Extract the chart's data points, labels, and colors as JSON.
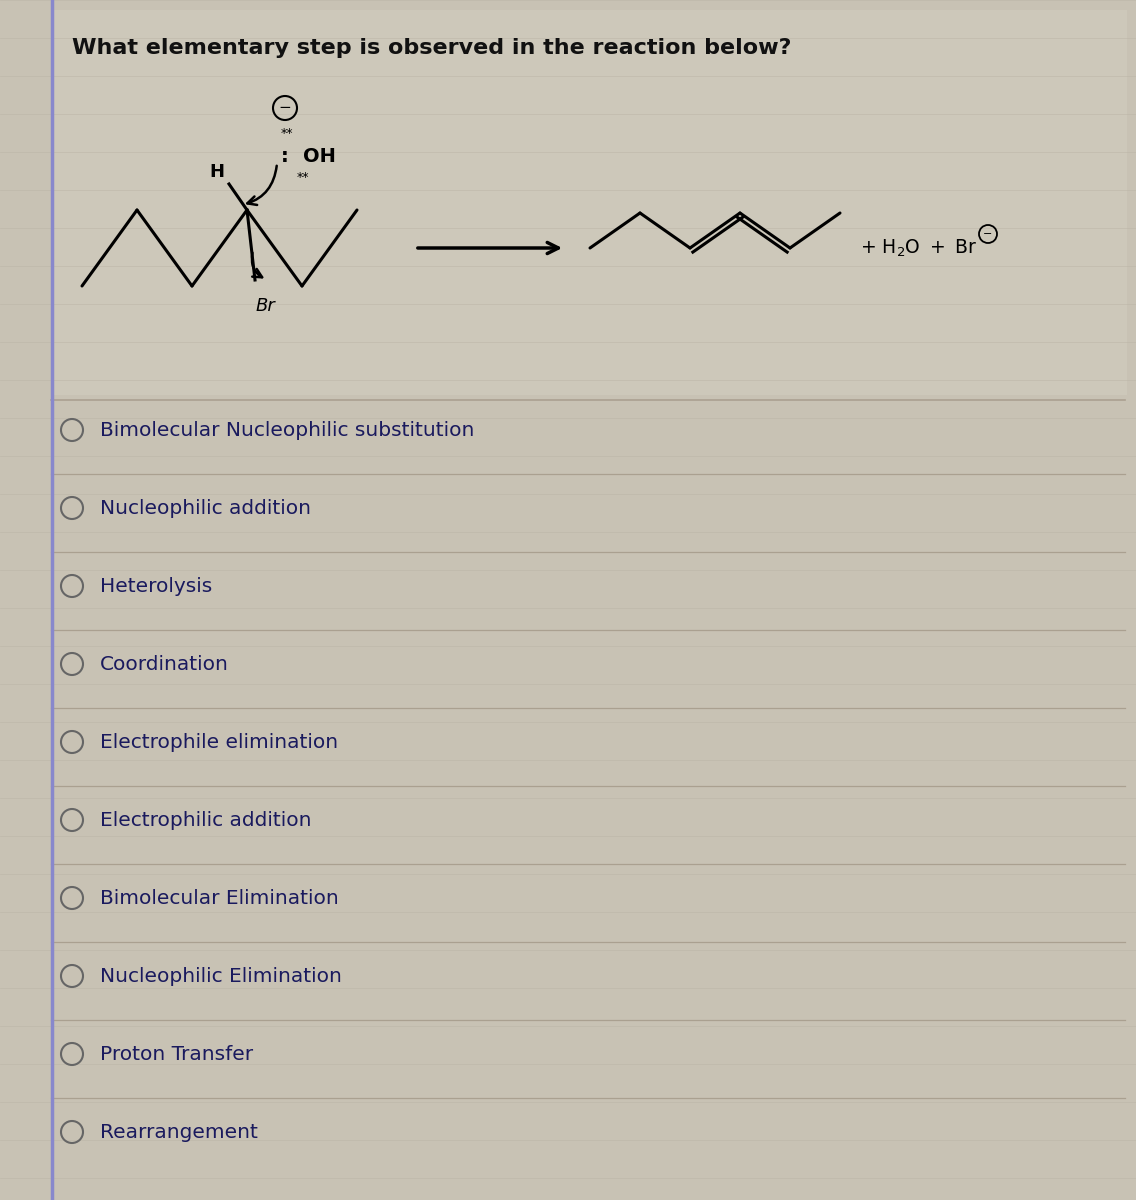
{
  "title": "What elementary step is observed in the reaction below?",
  "bg_color": "#c8c2b4",
  "title_fontsize": 16,
  "title_color": "#111111",
  "title_fontweight": "bold",
  "options": [
    "Bimolecular Nucleophilic substitution",
    "Nucleophilic addition",
    "Heterolysis",
    "Coordination",
    "Electrophile elimination",
    "Electrophilic addition",
    "Bimolecular Elimination",
    "Nucleophilic Elimination",
    "Proton Transfer",
    "Rearrangement"
  ],
  "option_color": "#1a1a5e",
  "option_fontsize": 14.5,
  "divider_color": "#aaa090",
  "circle_color": "#666666",
  "line_color": "#b0a898",
  "rxn_line_color": "#b0a898"
}
